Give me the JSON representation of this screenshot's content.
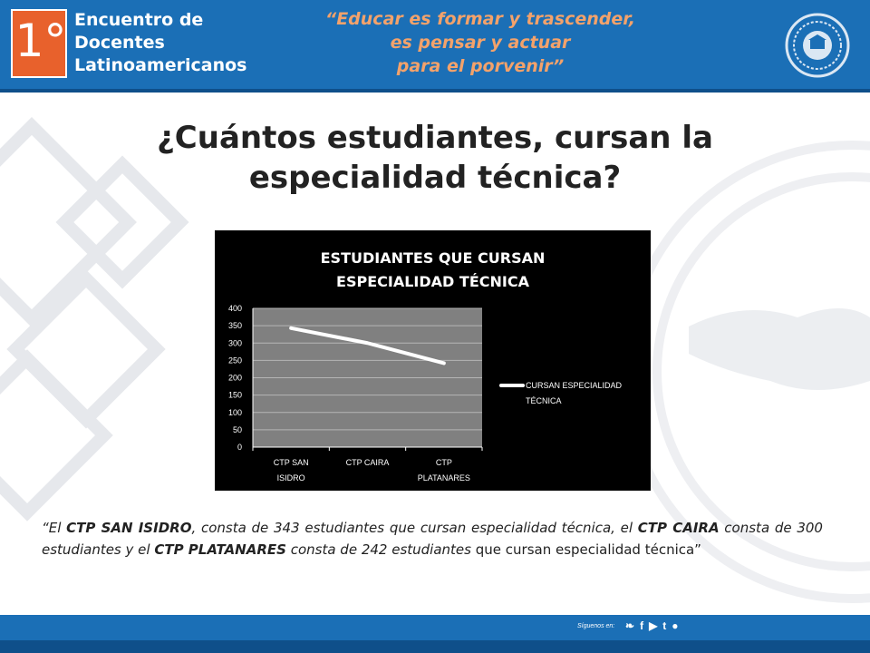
{
  "header": {
    "logo_number": "1°",
    "logo_lines": [
      "Encuentro de",
      "Docentes",
      "Latinoamericanos"
    ],
    "motto_lines": [
      "“Educar es formar y trascender,",
      "es pensar y actuar",
      "para el porvenir”"
    ],
    "seal_icon": "university-seal-icon"
  },
  "slide": {
    "title": "¿Cuántos estudiantes, cursan la especialidad técnica?"
  },
  "chart_data": {
    "type": "line",
    "title_lines": [
      "ESTUDIANTES QUE CURSAN",
      "ESPECIALIDAD TÉCNICA"
    ],
    "categories": [
      "CTP SAN ISIDRO",
      "CTP CAIRA",
      "CTP PLATANARES"
    ],
    "category_label_lines": [
      [
        "CTP SAN",
        "ISIDRO"
      ],
      [
        "CTP CAIRA"
      ],
      [
        "CTP",
        "PLATANARES"
      ]
    ],
    "series": [
      {
        "name": "CURSAN ESPECIALIDAD TÉCNICA",
        "values": [
          343,
          300,
          242
        ],
        "color": "#ffffff"
      }
    ],
    "legend_lines": [
      "CURSAN ESPECIALIDAD",
      "TÉCNICA"
    ],
    "ylim": [
      0,
      400
    ],
    "yticks": [
      0,
      50,
      100,
      150,
      200,
      250,
      300,
      350,
      400
    ],
    "grid": true,
    "legend_position": "right",
    "plot_background": "#808080",
    "background": "#000000"
  },
  "quote": {
    "open": "“El ",
    "s1": "CTP SAN ISIDRO",
    "t1": ", consta de 343 estudiantes que cursan especialidad técnica, el ",
    "s2": "CTP CAIRA",
    "t2": " consta de 300 estudiantes y el ",
    "s3": "CTP PLATANARES",
    "t3": " consta de 242 estudiantes ",
    "tail": "que cursan especialidad técnica”"
  },
  "footer": {
    "social_label": "Síguenos en:",
    "icons": [
      "twitter-icon",
      "facebook-icon",
      "youtube-icon",
      "tumblr-icon",
      "blogger-icon"
    ]
  },
  "colors": {
    "header_blue": "#1b6fb6",
    "logo_orange": "#e8612c",
    "motto_orange": "#f3a26b"
  }
}
